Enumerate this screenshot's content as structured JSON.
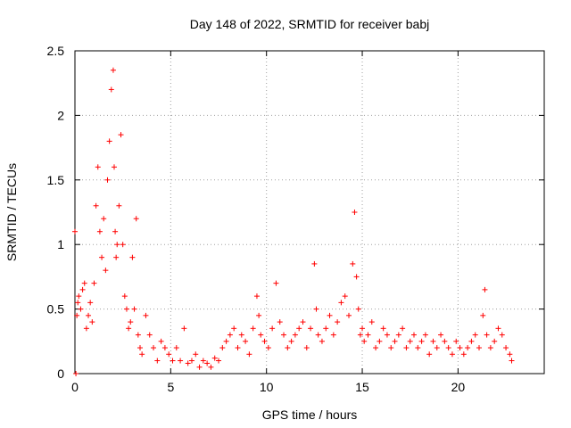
{
  "chart_data": {
    "type": "scatter",
    "title": "Day 148 of 2022, SRMTID for receiver babj",
    "xlabel": "GPS time / hours",
    "ylabel": "SRMTID / TECUs",
    "xlim": [
      0,
      24.5
    ],
    "ylim": [
      0,
      2.5
    ],
    "xticks": [
      0,
      5,
      10,
      15,
      20
    ],
    "xtick_labels": [
      "0",
      "5",
      "10",
      "15",
      "20"
    ],
    "yticks": [
      0,
      0.5,
      1,
      1.5,
      2,
      2.5
    ],
    "ytick_labels": [
      "0",
      "0.5",
      "1",
      "1.5",
      "2",
      "2.5"
    ],
    "grid": true,
    "marker": "+",
    "series": [
      {
        "name": "SRMTID",
        "color": "#ff0000",
        "x": [
          0.0,
          0.05,
          0.1,
          0.15,
          0.2,
          0.3,
          0.4,
          0.5,
          0.6,
          0.7,
          0.8,
          0.9,
          1.0,
          1.1,
          1.2,
          1.3,
          1.4,
          1.5,
          1.6,
          1.7,
          1.8,
          1.9,
          2.0,
          2.05,
          2.1,
          2.15,
          2.2,
          2.3,
          2.4,
          2.5,
          2.6,
          2.7,
          2.8,
          2.9,
          3.0,
          3.1,
          3.2,
          3.3,
          3.4,
          3.5,
          3.7,
          3.9,
          4.1,
          4.3,
          4.5,
          4.7,
          4.9,
          5.1,
          5.3,
          5.5,
          5.7,
          5.9,
          6.1,
          6.3,
          6.5,
          6.7,
          6.9,
          7.1,
          7.3,
          7.5,
          7.7,
          7.9,
          8.1,
          8.3,
          8.5,
          8.7,
          8.9,
          9.1,
          9.3,
          9.5,
          9.6,
          9.7,
          9.9,
          10.1,
          10.3,
          10.5,
          10.7,
          10.9,
          11.1,
          11.3,
          11.5,
          11.7,
          11.9,
          12.1,
          12.3,
          12.5,
          12.6,
          12.7,
          12.9,
          13.1,
          13.3,
          13.5,
          13.7,
          13.9,
          14.1,
          14.3,
          14.5,
          14.6,
          14.7,
          14.8,
          14.9,
          15.0,
          15.1,
          15.3,
          15.5,
          15.7,
          15.9,
          16.1,
          16.3,
          16.5,
          16.7,
          16.9,
          17.1,
          17.3,
          17.5,
          17.7,
          17.9,
          18.1,
          18.3,
          18.5,
          18.7,
          18.9,
          19.1,
          19.3,
          19.5,
          19.7,
          19.9,
          20.1,
          20.3,
          20.5,
          20.7,
          20.9,
          21.1,
          21.3,
          21.4,
          21.5,
          21.7,
          21.9,
          22.1,
          22.3,
          22.5,
          22.7,
          22.8
        ],
        "values": [
          1.1,
          0.0,
          0.45,
          0.55,
          0.6,
          0.5,
          0.65,
          0.7,
          0.35,
          0.45,
          0.55,
          0.4,
          0.7,
          1.3,
          1.6,
          1.1,
          0.9,
          1.2,
          0.8,
          1.5,
          1.8,
          2.2,
          2.35,
          1.6,
          1.1,
          0.9,
          1.0,
          1.3,
          1.85,
          1.0,
          0.6,
          0.5,
          0.35,
          0.4,
          0.9,
          0.5,
          1.2,
          0.3,
          0.2,
          0.15,
          0.45,
          0.3,
          0.2,
          0.1,
          0.25,
          0.2,
          0.15,
          0.1,
          0.2,
          0.1,
          0.35,
          0.08,
          0.1,
          0.15,
          0.05,
          0.1,
          0.08,
          0.05,
          0.12,
          0.1,
          0.2,
          0.25,
          0.3,
          0.35,
          0.2,
          0.3,
          0.25,
          0.15,
          0.35,
          0.6,
          0.45,
          0.3,
          0.25,
          0.2,
          0.35,
          0.7,
          0.4,
          0.3,
          0.2,
          0.25,
          0.3,
          0.35,
          0.4,
          0.2,
          0.35,
          0.85,
          0.5,
          0.3,
          0.25,
          0.35,
          0.45,
          0.3,
          0.4,
          0.55,
          0.6,
          0.45,
          0.85,
          1.25,
          0.75,
          0.5,
          0.3,
          0.35,
          0.25,
          0.3,
          0.4,
          0.2,
          0.25,
          0.35,
          0.3,
          0.2,
          0.25,
          0.3,
          0.35,
          0.2,
          0.25,
          0.3,
          0.2,
          0.25,
          0.3,
          0.15,
          0.25,
          0.2,
          0.3,
          0.25,
          0.2,
          0.15,
          0.25,
          0.2,
          0.15,
          0.2,
          0.25,
          0.3,
          0.2,
          0.45,
          0.65,
          0.3,
          0.2,
          0.25,
          0.35,
          0.3,
          0.2,
          0.15,
          0.1
        ]
      }
    ]
  }
}
